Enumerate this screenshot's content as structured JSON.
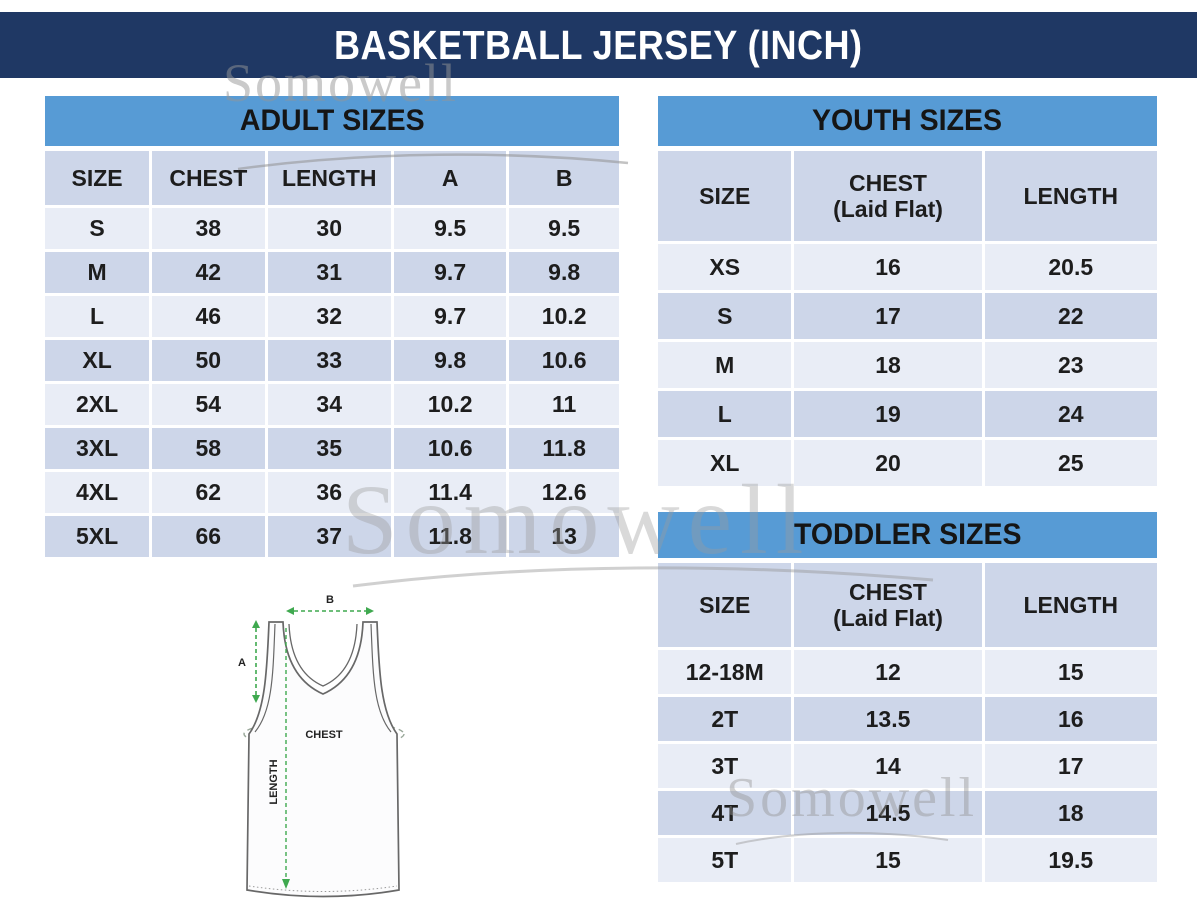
{
  "title": "BASKETBALL JERSEY (INCH)",
  "watermark": {
    "text": "Somowell"
  },
  "colors": {
    "title_navy": "#1f3864",
    "band_blue": "#579bd5",
    "row_dark": "#cdd6e9",
    "row_light": "#e9edf6",
    "accent_green": "#3fa94f"
  },
  "tables": {
    "adult": {
      "title": "ADULT SIZES",
      "columns": [
        "SIZE",
        "CHEST",
        "LENGTH",
        "A",
        "B"
      ],
      "rows": [
        [
          "S",
          "38",
          "30",
          "9.5",
          "9.5"
        ],
        [
          "M",
          "42",
          "31",
          "9.7",
          "9.8"
        ],
        [
          "L",
          "46",
          "32",
          "9.7",
          "10.2"
        ],
        [
          "XL",
          "50",
          "33",
          "9.8",
          "10.6"
        ],
        [
          "2XL",
          "54",
          "34",
          "10.2",
          "11"
        ],
        [
          "3XL",
          "58",
          "35",
          "10.6",
          "11.8"
        ],
        [
          "4XL",
          "62",
          "36",
          "11.4",
          "12.6"
        ],
        [
          "5XL",
          "66",
          "37",
          "11.8",
          "13"
        ]
      ]
    },
    "youth": {
      "title": "YOUTH SIZES",
      "columns": [
        "SIZE",
        "CHEST\n(Laid Flat)",
        "LENGTH"
      ],
      "rows": [
        [
          "XS",
          "16",
          "20.5"
        ],
        [
          "S",
          "17",
          "22"
        ],
        [
          "M",
          "18",
          "23"
        ],
        [
          "L",
          "19",
          "24"
        ],
        [
          "XL",
          "20",
          "25"
        ]
      ]
    },
    "toddler": {
      "title": "TODDLER SIZES",
      "columns": [
        "SIZE",
        "CHEST\n(Laid Flat)",
        "LENGTH"
      ],
      "rows": [
        [
          "12-18M",
          "12",
          "15"
        ],
        [
          "2T",
          "13.5",
          "16"
        ],
        [
          "3T",
          "14",
          "17"
        ],
        [
          "4T",
          "14.5",
          "18"
        ],
        [
          "5T",
          "15",
          "19.5"
        ]
      ]
    }
  },
  "diagram": {
    "labels": {
      "a": "A",
      "b": "B",
      "chest": "CHEST",
      "length": "LENGTH"
    }
  }
}
